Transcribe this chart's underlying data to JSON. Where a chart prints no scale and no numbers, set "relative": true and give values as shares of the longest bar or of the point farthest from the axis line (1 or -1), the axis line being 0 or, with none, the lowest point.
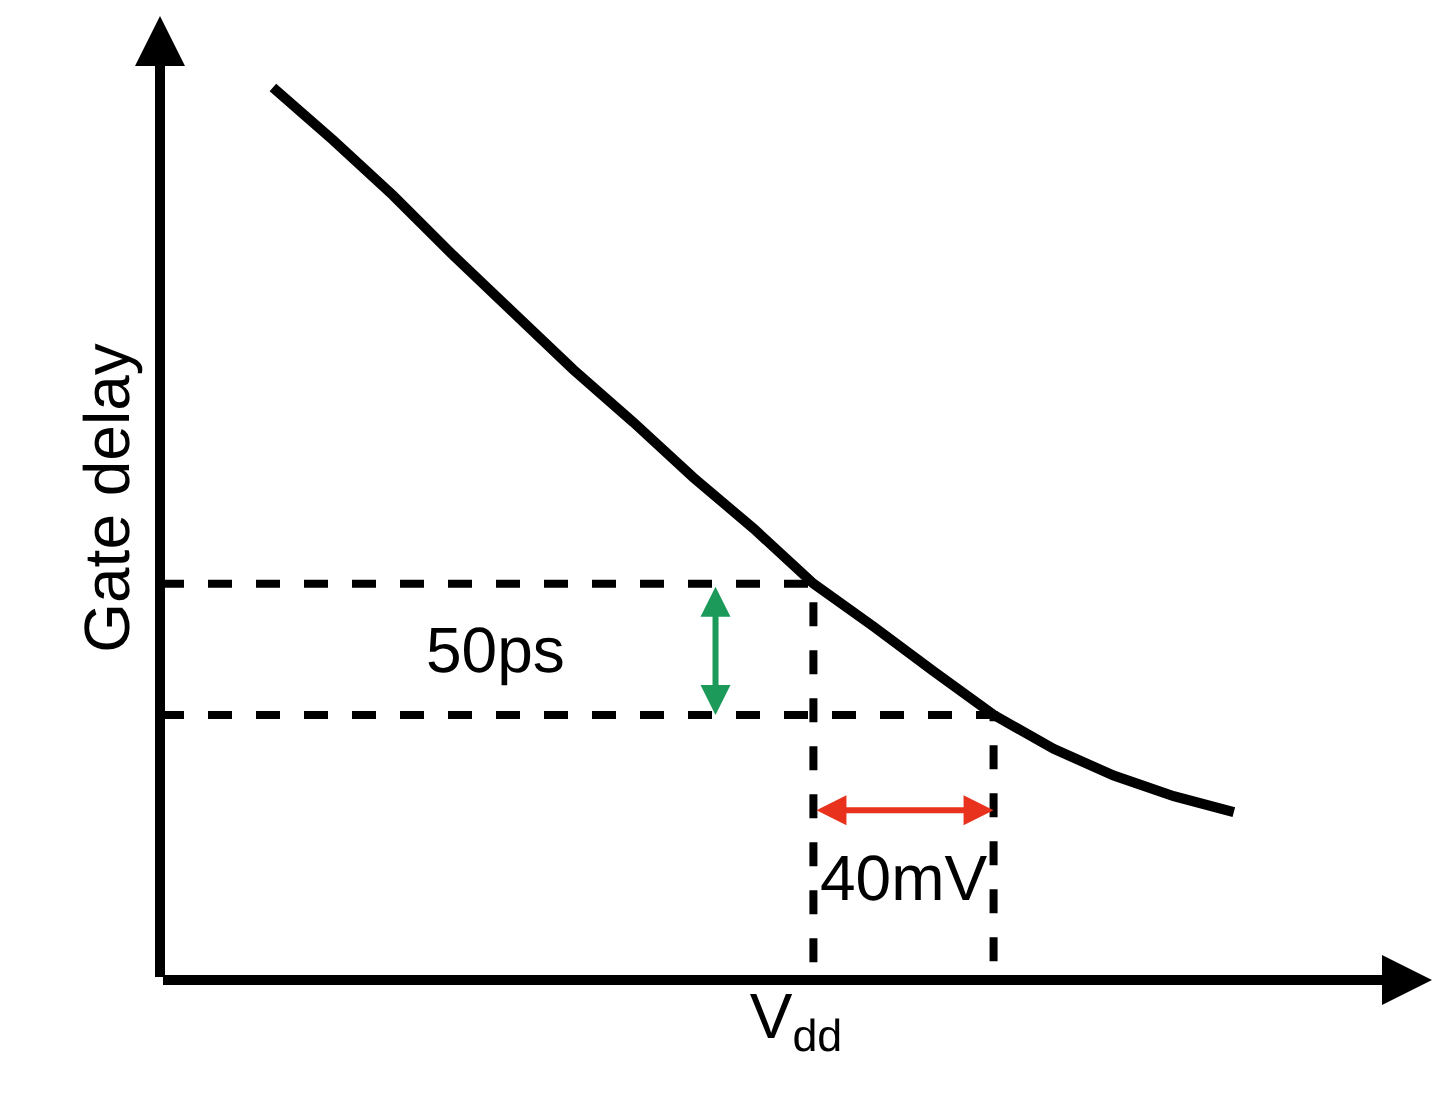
{
  "chart_data": {
    "type": "line",
    "relative": true,
    "xlabel": "V$_{dd}$",
    "ylabel": "Gate delay",
    "categories": [
      null,
      null,
      null,
      null,
      null,
      null,
      null,
      null,
      null,
      null,
      null,
      null,
      null,
      null,
      null,
      null,
      null
    ],
    "series": [
      {
        "color": "#000000",
        "values": [
          1.0,
          0.941,
          0.879,
          0.812,
          0.748,
          0.684,
          0.625,
          0.563,
          0.506,
          0.444,
          0.396,
          0.346,
          0.297,
          0.259,
          0.229,
          0.206,
          0.188
        ]
      }
    ],
    "ref_lines": [
      {
        "axis": "y",
        "value": 0.444,
        "color": "#000000",
        "line_style": "dashed"
      },
      {
        "axis": "y",
        "value": 0.297,
        "color": "#000000",
        "line_style": "dashed"
      }
    ],
    "annotations": [
      "50ps",
      "40mV"
    ],
    "marker": "none"
  }
}
